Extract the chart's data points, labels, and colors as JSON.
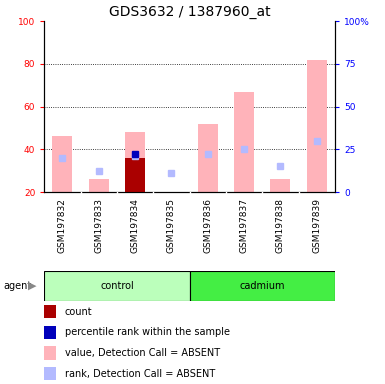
{
  "title": "GDS3632 / 1387960_at",
  "samples": [
    "GSM197832",
    "GSM197833",
    "GSM197834",
    "GSM197835",
    "GSM197836",
    "GSM197837",
    "GSM197838",
    "GSM197839"
  ],
  "value_absent": [
    46,
    26,
    48,
    null,
    52,
    67,
    26,
    82
  ],
  "rank_absent": [
    36,
    30,
    37,
    29,
    38,
    40,
    32,
    44
  ],
  "count_value": [
    null,
    null,
    36,
    null,
    null,
    null,
    null,
    null
  ],
  "percentile_value": [
    null,
    null,
    38,
    null,
    null,
    null,
    null,
    null
  ],
  "left_ylim": [
    20,
    100
  ],
  "left_yticks": [
    20,
    40,
    60,
    80,
    100
  ],
  "right_yticks": [
    0,
    25,
    50,
    75,
    100
  ],
  "right_yticklabels": [
    "0",
    "25",
    "50",
    "75",
    "100%"
  ],
  "color_value_absent": "#ffb3ba",
  "color_rank_absent": "#b3baff",
  "color_count": "#aa0000",
  "color_percentile": "#0000bb",
  "color_plot_bg": "#ffffff",
  "color_tickbox_bg": "#cccccc",
  "color_control_bg": "#bbffbb",
  "color_cadmium_bg": "#44ee44",
  "title_fontsize": 10,
  "tick_fontsize": 6.5,
  "label_fontsize": 7,
  "legend_fontsize": 7
}
